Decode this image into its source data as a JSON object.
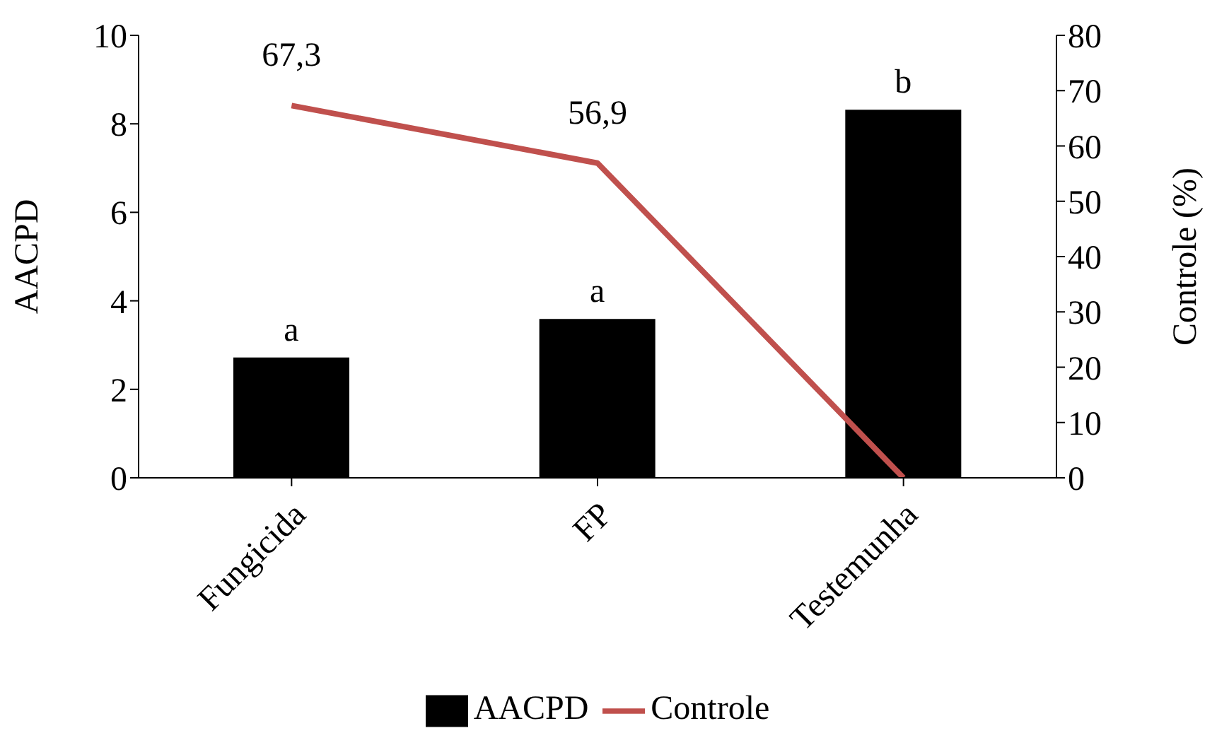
{
  "chart_data": {
    "type": "bar",
    "ylabel": "AACPD",
    "y2label": "Controle (%)",
    "categories": [
      "Fungicida",
      "FP",
      "Testemunha"
    ],
    "series": [
      {
        "name": "AACPD",
        "color": "#000000",
        "values": [
          2.72,
          3.59,
          8.32
        ],
        "value_labels": [
          "a",
          "a",
          "b"
        ]
      },
      {
        "name": "Controle",
        "type": "line",
        "axis": "y2",
        "color": "#c0504d",
        "values": [
          67.3,
          56.9,
          0
        ],
        "value_labels": [
          "67,3",
          "56,9",
          null
        ],
        "marker": "none"
      }
    ],
    "ylim": [
      0,
      10
    ],
    "yticks": [
      0,
      2,
      4,
      6,
      8,
      10
    ],
    "y2lim": [
      0,
      80
    ],
    "y2ticks": [
      0,
      10,
      20,
      30,
      40,
      50,
      60,
      70,
      80
    ],
    "legend": "bottom"
  }
}
